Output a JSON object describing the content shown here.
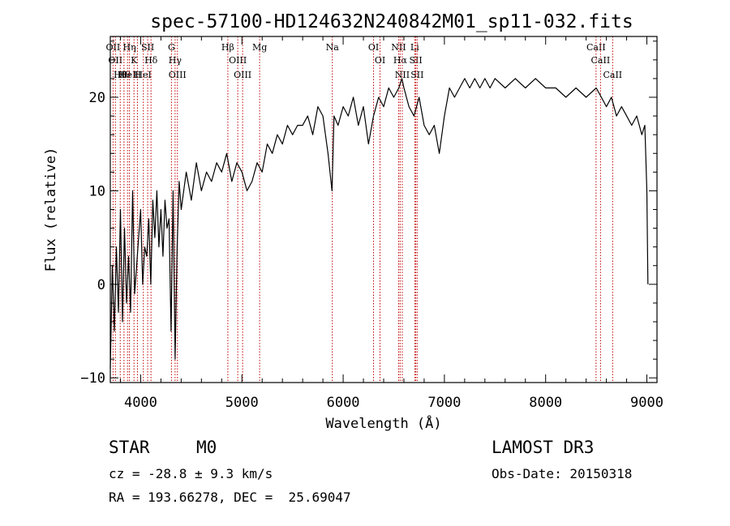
{
  "chart_data": {
    "type": "line",
    "title": "spec-57100-HD124632N240842M01_sp11-032.fits",
    "xlabel": "Wavelength (Å)",
    "ylabel": "Flux (relative)",
    "xlim": [
      3700,
      9100
    ],
    "ylim": [
      -10.5,
      26.5
    ],
    "xticks": [
      4000,
      5000,
      6000,
      7000,
      8000,
      9000
    ],
    "yticks": [
      -10,
      0,
      10,
      20
    ],
    "series": [
      {
        "name": "spectrum",
        "x": [
          3700,
          3720,
          3740,
          3760,
          3780,
          3800,
          3820,
          3840,
          3860,
          3880,
          3900,
          3920,
          3940,
          3960,
          3980,
          4000,
          4020,
          4040,
          4060,
          4080,
          4100,
          4120,
          4140,
          4160,
          4180,
          4200,
          4220,
          4240,
          4260,
          4280,
          4300,
          4320,
          4340,
          4360,
          4380,
          4400,
          4450,
          4500,
          4550,
          4600,
          4650,
          4700,
          4750,
          4800,
          4850,
          4900,
          4950,
          5000,
          5050,
          5100,
          5150,
          5200,
          5250,
          5300,
          5350,
          5400,
          5450,
          5500,
          5550,
          5600,
          5650,
          5700,
          5750,
          5800,
          5850,
          5890,
          5910,
          5950,
          6000,
          6050,
          6100,
          6150,
          6200,
          6250,
          6300,
          6350,
          6400,
          6450,
          6500,
          6550,
          6580,
          6600,
          6650,
          6700,
          6750,
          6800,
          6850,
          6900,
          6950,
          7000,
          7050,
          7100,
          7150,
          7200,
          7250,
          7300,
          7350,
          7400,
          7450,
          7500,
          7600,
          7700,
          7800,
          7900,
          8000,
          8100,
          8200,
          8300,
          8400,
          8500,
          8550,
          8600,
          8650,
          8700,
          8750,
          8800,
          8850,
          8900,
          8950,
          8980,
          9000,
          9010
        ],
        "y": [
          -9,
          2,
          -5,
          4,
          -3,
          8,
          -4,
          6,
          -2,
          3,
          -3,
          10,
          -1,
          2,
          5,
          8,
          0,
          4,
          3,
          7,
          0,
          9,
          5,
          10,
          4,
          8,
          3,
          9,
          6,
          7,
          -5,
          10,
          -8,
          4,
          11,
          8,
          12,
          9,
          13,
          10,
          12,
          11,
          13,
          12,
          14,
          11,
          13,
          12,
          10,
          11,
          13,
          12,
          15,
          14,
          16,
          15,
          17,
          16,
          17,
          17,
          18,
          16,
          19,
          18,
          14,
          10,
          18,
          17,
          19,
          18,
          20,
          17,
          19,
          15,
          18,
          20,
          19,
          21,
          20,
          21,
          22,
          21,
          19,
          18,
          20,
          17,
          16,
          17,
          14,
          18,
          21,
          20,
          21,
          22,
          21,
          22,
          21,
          22,
          21,
          22,
          21,
          22,
          21,
          22,
          21,
          21,
          20,
          21,
          20,
          21,
          20,
          19,
          20,
          18,
          19,
          18,
          17,
          18,
          16,
          17,
          10,
          0
        ]
      }
    ],
    "lines": [
      {
        "wl": 3727,
        "labels": [
          "OII"
        ]
      },
      {
        "wl": 3750,
        "labels": [
          "OII"
        ]
      },
      {
        "wl": 3798,
        "labels": [
          "Hθ"
        ]
      },
      {
        "wl": 3835,
        "labels": [
          "Hθ"
        ]
      },
      {
        "wl": 3870,
        "labels": [
          "HeI"
        ]
      },
      {
        "wl": 3889,
        "labels": [
          "Hη"
        ]
      },
      {
        "wl": 3934,
        "labels": [
          "K"
        ]
      },
      {
        "wl": 3968,
        "labels": [
          "H"
        ]
      },
      {
        "wl": 4026,
        "labels": [
          "HeI"
        ]
      },
      {
        "wl": 4069,
        "labels": [
          "SII"
        ]
      },
      {
        "wl": 4102,
        "labels": [
          "Hδ"
        ]
      },
      {
        "wl": 4304,
        "labels": [
          "G"
        ]
      },
      {
        "wl": 4340,
        "labels": [
          "Hγ"
        ]
      },
      {
        "wl": 4363,
        "labels": [
          "OIII"
        ]
      },
      {
        "wl": 4861,
        "labels": [
          "Hβ"
        ]
      },
      {
        "wl": 4959,
        "labels": [
          "OIII"
        ]
      },
      {
        "wl": 5007,
        "labels": [
          "OIII"
        ]
      },
      {
        "wl": 5175,
        "labels": [
          "Mg"
        ]
      },
      {
        "wl": 5893,
        "labels": [
          "Na"
        ]
      },
      {
        "wl": 6300,
        "labels": [
          "OI"
        ]
      },
      {
        "wl": 6364,
        "labels": [
          "OI"
        ]
      },
      {
        "wl": 6548,
        "labels": [
          "NII"
        ]
      },
      {
        "wl": 6563,
        "labels": [
          "Hα"
        ]
      },
      {
        "wl": 6584,
        "labels": [
          "NII"
        ]
      },
      {
        "wl": 6707,
        "labels": [
          "Li"
        ]
      },
      {
        "wl": 6717,
        "labels": [
          "SII"
        ]
      },
      {
        "wl": 6731,
        "labels": [
          "SII"
        ]
      },
      {
        "wl": 8498,
        "labels": [
          "CaII"
        ]
      },
      {
        "wl": 8542,
        "labels": [
          "CaII"
        ]
      },
      {
        "wl": 8662,
        "labels": [
          "CaII"
        ]
      }
    ]
  },
  "info": {
    "class": "STAR",
    "subclass": "M0",
    "survey": "LAMOST DR3",
    "cz": "cz = -28.8 ± 9.3 km/s",
    "obs_date": "Obs-Date: 20150318",
    "coords": "RA = 193.66278, DEC =  25.69047"
  }
}
